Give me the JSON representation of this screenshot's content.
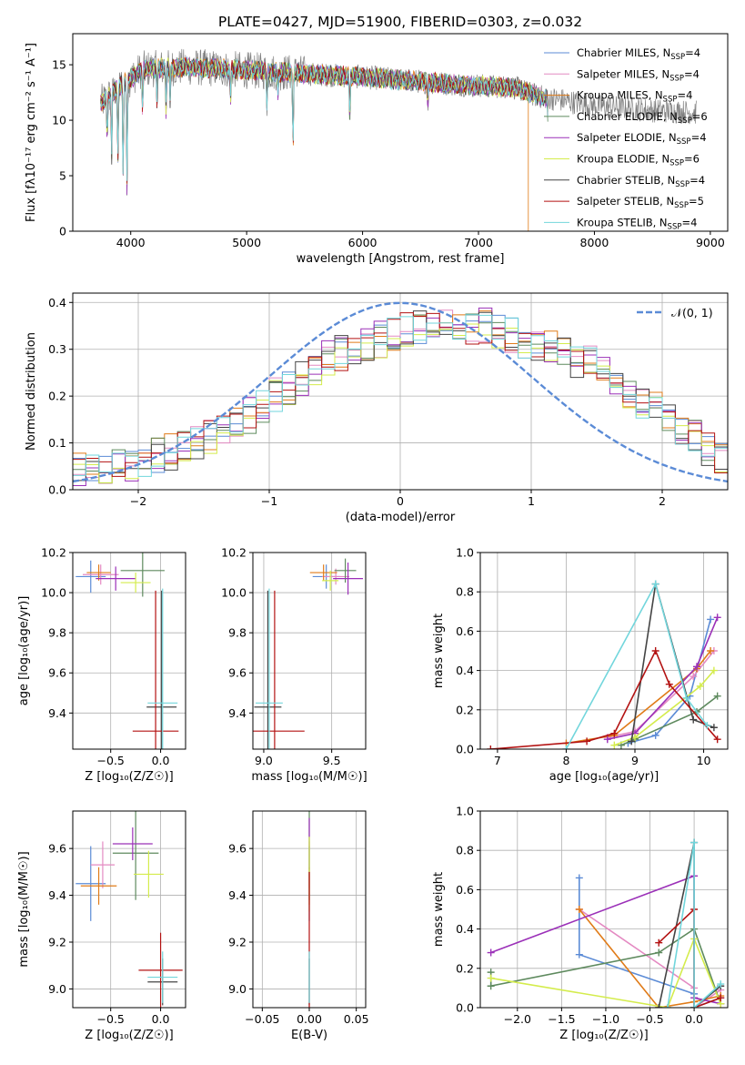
{
  "figure_title": "PLATE=0427, MJD=51900, FIBERID=0303, z=0.032",
  "models": [
    {
      "name": "Chabrier MILES",
      "color": "#5b8bd6",
      "nssp": "4"
    },
    {
      "name": "Salpeter MILES",
      "color": "#e48ac2",
      "nssp": "4"
    },
    {
      "name": "Kroupa MILES",
      "color": "#e07b18",
      "nssp": "4"
    },
    {
      "name": "Chabrier ELODIE",
      "color": "#5e8a5e",
      "nssp": "6"
    },
    {
      "name": "Salpeter ELODIE",
      "color": "#9b30b8",
      "nssp": "4"
    },
    {
      "name": "Kroupa ELODIE",
      "color": "#d4ec4c",
      "nssp": "6"
    },
    {
      "name": "Chabrier STELIB",
      "color": "#444444",
      "nssp": "4"
    },
    {
      "name": "Salpeter STELIB",
      "color": "#b31212",
      "nssp": "5"
    },
    {
      "name": "Kroupa STELIB",
      "color": "#72d6dc",
      "nssp": "4"
    }
  ],
  "chart_data": [
    {
      "id": "spectrum",
      "type": "line",
      "xlabel": "wavelength [Angstrom, rest frame]",
      "ylabel": "Flux [fλ10⁻¹⁷ erg cm⁻² s⁻¹ A⁻¹]",
      "xlim": [
        3500,
        9150
      ],
      "ylim": [
        0,
        17.8
      ],
      "xticks": [
        4000,
        5000,
        6000,
        7000,
        8000,
        9000
      ],
      "yticks": [
        0,
        5,
        10,
        15
      ],
      "data_color": "#808080",
      "data_range": [
        3740,
        8880
      ],
      "model_range": [
        3740,
        7600
      ],
      "continuum_anchors": [
        [
          3740,
          11.5
        ],
        [
          3900,
          13.0
        ],
        [
          4100,
          14.6
        ],
        [
          4500,
          14.8
        ],
        [
          5000,
          14.5
        ],
        [
          5500,
          14.2
        ],
        [
          6000,
          13.9
        ],
        [
          6500,
          13.5
        ],
        [
          7000,
          13.1
        ],
        [
          7300,
          13.0
        ],
        [
          7500,
          12.2
        ],
        [
          8000,
          11.3
        ],
        [
          8500,
          10.9
        ],
        [
          8880,
          10.7
        ]
      ],
      "absorption_lines": [
        [
          3797,
          4
        ],
        [
          3835,
          6
        ],
        [
          3889,
          7
        ],
        [
          3934,
          9
        ],
        [
          3968,
          10
        ],
        [
          4102,
          4
        ],
        [
          4227,
          3
        ],
        [
          4305,
          4
        ],
        [
          4340,
          3
        ],
        [
          4861,
          3
        ],
        [
          5175,
          3
        ],
        [
          5270,
          2
        ],
        [
          5400,
          7
        ],
        [
          5890,
          4
        ],
        [
          6563,
          2
        ],
        [
          7600,
          2
        ]
      ],
      "legend_position": "upper-right",
      "grid": false
    },
    {
      "id": "residual_hist",
      "type": "step",
      "xlabel": "(data-model)/error",
      "ylabel": "Normed distribution",
      "xlim": [
        -2.5,
        2.5
      ],
      "ylim": [
        0,
        0.42
      ],
      "xticks": [
        -2,
        -1,
        0,
        1,
        2
      ],
      "yticks": [
        0.0,
        0.1,
        0.2,
        0.3,
        0.4
      ],
      "bin_width": 0.1,
      "bins_start": -2.5,
      "reference_curve": {
        "label": "𝒩(0, 1)",
        "mean": 0,
        "sigma": 1,
        "color": "#5b8bd6"
      },
      "envelope": [
        0.038,
        0.04,
        0.044,
        0.05,
        0.058,
        0.066,
        0.072,
        0.08,
        0.092,
        0.104,
        0.115,
        0.125,
        0.14,
        0.16,
        0.18,
        0.2,
        0.22,
        0.24,
        0.26,
        0.28,
        0.29,
        0.3,
        0.31,
        0.32,
        0.33,
        0.34,
        0.35,
        0.35,
        0.35,
        0.35,
        0.35,
        0.35,
        0.34,
        0.33,
        0.32,
        0.31,
        0.3,
        0.29,
        0.28,
        0.27,
        0.25,
        0.23,
        0.21,
        0.19,
        0.17,
        0.15,
        0.13,
        0.11,
        0.09,
        0.07
      ],
      "legend_position": "upper-right",
      "grid": true
    },
    {
      "id": "age_vs_Z",
      "type": "errorbar",
      "xlabel": "Z [log₁₀(Z/Z☉)]",
      "ylabel": "age  [log₁₀(age/yr)]",
      "xlim": [
        -0.88,
        0.25
      ],
      "ylim": [
        9.22,
        10.2
      ],
      "xticks": [
        -0.5,
        0.0
      ],
      "yticks": [
        9.4,
        9.6,
        9.8,
        10.0,
        10.2
      ],
      "points": [
        {
          "x": -0.7,
          "y": 10.08,
          "xerr": 0.15,
          "yerr": 0.08
        },
        {
          "x": -0.6,
          "y": 10.09,
          "xerr": 0.18,
          "yerr": 0.05
        },
        {
          "x": -0.62,
          "y": 10.1,
          "xerr": 0.12,
          "yerr": 0.04
        },
        {
          "x": -0.18,
          "y": 10.11,
          "xerr": 0.22,
          "yerr": 0.13
        },
        {
          "x": -0.45,
          "y": 10.07,
          "xerr": 0.2,
          "yerr": 0.06
        },
        {
          "x": -0.25,
          "y": 10.05,
          "xerr": 0.15,
          "yerr": 0.05
        },
        {
          "x": 0.01,
          "y": 9.43,
          "xerr": 0.15,
          "yerr": 0.58
        },
        {
          "x": -0.05,
          "y": 9.31,
          "xerr": 0.23,
          "yerr": 0.7
        },
        {
          "x": 0.02,
          "y": 9.45,
          "xerr": 0.15,
          "yerr": 0.57
        }
      ],
      "grid": true
    },
    {
      "id": "age_vs_mass",
      "type": "errorbar",
      "xlabel": "mass [log₁₀(M/M☉)]",
      "ylabel": "",
      "xlim": [
        8.92,
        9.75
      ],
      "ylim": [
        9.22,
        10.2
      ],
      "xticks": [
        9.0,
        9.5
      ],
      "yticks": [
        9.4,
        9.6,
        9.8,
        10.0,
        10.2
      ],
      "points": [
        {
          "x": 9.46,
          "y": 10.08,
          "xerr": 0.1,
          "yerr": 0.06
        },
        {
          "x": 9.53,
          "y": 10.08,
          "xerr": 0.1,
          "yerr": 0.04
        },
        {
          "x": 9.44,
          "y": 10.1,
          "xerr": 0.1,
          "yerr": 0.04
        },
        {
          "x": 9.6,
          "y": 10.11,
          "xerr": 0.08,
          "yerr": 0.06
        },
        {
          "x": 9.62,
          "y": 10.07,
          "xerr": 0.11,
          "yerr": 0.08
        },
        {
          "x": 9.49,
          "y": 10.06,
          "xerr": 0.06,
          "yerr": 0.05
        },
        {
          "x": 9.03,
          "y": 9.43,
          "xerr": 0.1,
          "yerr": 0.58
        },
        {
          "x": 9.08,
          "y": 9.31,
          "xerr": 0.22,
          "yerr": 0.7
        },
        {
          "x": 9.04,
          "y": 9.45,
          "xerr": 0.1,
          "yerr": 0.57
        }
      ],
      "grid": true
    },
    {
      "id": "weight_vs_age",
      "type": "line",
      "xlabel": "age  [log₁₀(age/yr)]",
      "ylabel": "mass weight",
      "xlim": [
        6.75,
        10.35
      ],
      "ylim": [
        0,
        1.0
      ],
      "xticks": [
        7,
        8,
        9,
        10
      ],
      "yticks": [
        0.0,
        0.2,
        0.4,
        0.6,
        0.8,
        1.0
      ],
      "series": [
        {
          "x": [
            8.9,
            9.3,
            9.8,
            10.1
          ],
          "y": [
            0.03,
            0.07,
            0.27,
            0.66
          ]
        },
        {
          "x": [
            8.6,
            9.0,
            9.85,
            10.15
          ],
          "y": [
            0.06,
            0.09,
            0.37,
            0.5
          ]
        },
        {
          "x": [
            8.0,
            8.7,
            9.9,
            10.1
          ],
          "y": [
            0.03,
            0.07,
            0.41,
            0.5
          ]
        },
        {
          "x": [
            8.8,
            9.0,
            9.9,
            10.2
          ],
          "y": [
            0.02,
            0.05,
            0.19,
            0.27
          ]
        },
        {
          "x": [
            8.6,
            9.0,
            9.9,
            10.2
          ],
          "y": [
            0.05,
            0.08,
            0.42,
            0.67
          ]
        },
        {
          "x": [
            8.7,
            9.0,
            9.95,
            10.15
          ],
          "y": [
            0.02,
            0.06,
            0.32,
            0.4
          ]
        },
        {
          "x": [
            8.95,
            9.3,
            9.85,
            10.15
          ],
          "y": [
            0.04,
            0.84,
            0.15,
            0.11
          ]
        },
        {
          "x": [
            6.9,
            8.3,
            8.7,
            9.3,
            9.5,
            10.2
          ],
          "y": [
            0.0,
            0.04,
            0.08,
            0.5,
            0.33,
            0.05
          ]
        },
        {
          "x": [
            8.0,
            9.3,
            9.75,
            10.05
          ],
          "y": [
            0.0,
            0.84,
            0.26,
            0.12
          ]
        }
      ],
      "grid": true
    },
    {
      "id": "mass_vs_Z",
      "type": "errorbar",
      "xlabel": "Z [log₁₀(Z/Z☉)]",
      "ylabel": "mass [log₁₀(M/M☉)]",
      "xlim": [
        -0.88,
        0.25
      ],
      "ylim": [
        8.92,
        9.76
      ],
      "xticks": [
        -0.5,
        0.0
      ],
      "yticks": [
        9.0,
        9.2,
        9.4,
        9.6
      ],
      "points": [
        {
          "x": -0.7,
          "y": 9.45,
          "xerr": 0.15,
          "yerr": 0.16
        },
        {
          "x": -0.58,
          "y": 9.53,
          "xerr": 0.12,
          "yerr": 0.1
        },
        {
          "x": -0.62,
          "y": 9.44,
          "xerr": 0.18,
          "yerr": 0.08
        },
        {
          "x": -0.25,
          "y": 9.58,
          "xerr": 0.23,
          "yerr": 0.2
        },
        {
          "x": -0.28,
          "y": 9.62,
          "xerr": 0.2,
          "yerr": 0.07
        },
        {
          "x": -0.12,
          "y": 9.49,
          "xerr": 0.15,
          "yerr": 0.1
        },
        {
          "x": 0.02,
          "y": 9.03,
          "xerr": 0.15,
          "yerr": 0.1
        },
        {
          "x": 0.0,
          "y": 9.08,
          "xerr": 0.22,
          "yerr": 0.16
        },
        {
          "x": 0.02,
          "y": 9.05,
          "xerr": 0.15,
          "yerr": 0.11
        }
      ],
      "grid": true
    },
    {
      "id": "mass_vs_ebv",
      "type": "errorbar",
      "xlabel": "E(B-V)",
      "ylabel": "",
      "xlim": [
        -0.06,
        0.06
      ],
      "ylim": [
        8.92,
        9.76
      ],
      "xticks": [
        -0.05,
        0.0,
        0.05
      ],
      "yticks": [
        9.0,
        9.2,
        9.4,
        9.6
      ],
      "points": [
        {
          "x": 0.0,
          "y": 9.45,
          "xerr": 0,
          "yerr": 0.16
        },
        {
          "x": 0.0,
          "y": 9.53,
          "xerr": 0,
          "yerr": 0.1
        },
        {
          "x": 0.0,
          "y": 9.44,
          "xerr": 0,
          "yerr": 0.08
        },
        {
          "x": 0.0,
          "y": 9.58,
          "xerr": 0,
          "yerr": 0.2
        },
        {
          "x": 0.0,
          "y": 9.62,
          "xerr": 0,
          "yerr": 0.11
        },
        {
          "x": 0.0,
          "y": 9.49,
          "xerr": 0,
          "yerr": 0.16
        },
        {
          "x": 0.0,
          "y": 9.03,
          "xerr": 0,
          "yerr": 0.1
        },
        {
          "x": 0.0,
          "y": 9.08,
          "xerr": 0,
          "yerr": 0.42
        },
        {
          "x": 0.0,
          "y": 9.05,
          "xerr": 0,
          "yerr": 0.11
        }
      ],
      "grid": true
    },
    {
      "id": "weight_vs_Z",
      "type": "line",
      "xlabel": "Z [log₁₀(Z/Z☉)]",
      "ylabel": "mass weight",
      "xlim": [
        -2.42,
        0.38
      ],
      "ylim": [
        0,
        1.0
      ],
      "xticks": [
        -2.0,
        -1.5,
        -1.0,
        -0.5,
        0.0
      ],
      "yticks": [
        0.0,
        0.2,
        0.4,
        0.6,
        0.8,
        1.0
      ],
      "series": [
        {
          "x": [
            -1.3,
            -1.3,
            0.0,
            0.0,
            0.3
          ],
          "y": [
            0.66,
            0.27,
            0.07,
            0.0,
            0.05
          ]
        },
        {
          "x": [
            -1.3,
            0.0,
            0.0,
            0.3
          ],
          "y": [
            0.5,
            0.1,
            0.0,
            0.09
          ]
        },
        {
          "x": [
            -1.3,
            -0.4,
            0.0,
            0.3
          ],
          "y": [
            0.5,
            0.0,
            0.03,
            0.06
          ]
        },
        {
          "x": [
            -2.3,
            -2.3,
            -0.4,
            0.0,
            0.3
          ],
          "y": [
            0.18,
            0.11,
            0.28,
            0.4,
            0.02
          ]
        },
        {
          "x": [
            -2.3,
            0.0,
            0.0,
            0.3
          ],
          "y": [
            0.28,
            0.67,
            0.05,
            0.02
          ]
        },
        {
          "x": [
            -2.3,
            -0.3,
            0.0,
            0.3
          ],
          "y": [
            0.15,
            0.0,
            0.35,
            0.02
          ]
        },
        {
          "x": [
            -0.4,
            0.0,
            0.0,
            0.3
          ],
          "y": [
            0.0,
            0.84,
            0.0,
            0.11
          ]
        },
        {
          "x": [
            -0.4,
            0.0,
            0.0,
            0.3
          ],
          "y": [
            0.33,
            0.5,
            0.0,
            0.05
          ]
        },
        {
          "x": [
            -0.3,
            0.0,
            0.0,
            0.3
          ],
          "y": [
            0.0,
            0.84,
            0.0,
            0.12
          ]
        }
      ],
      "grid": true
    }
  ]
}
